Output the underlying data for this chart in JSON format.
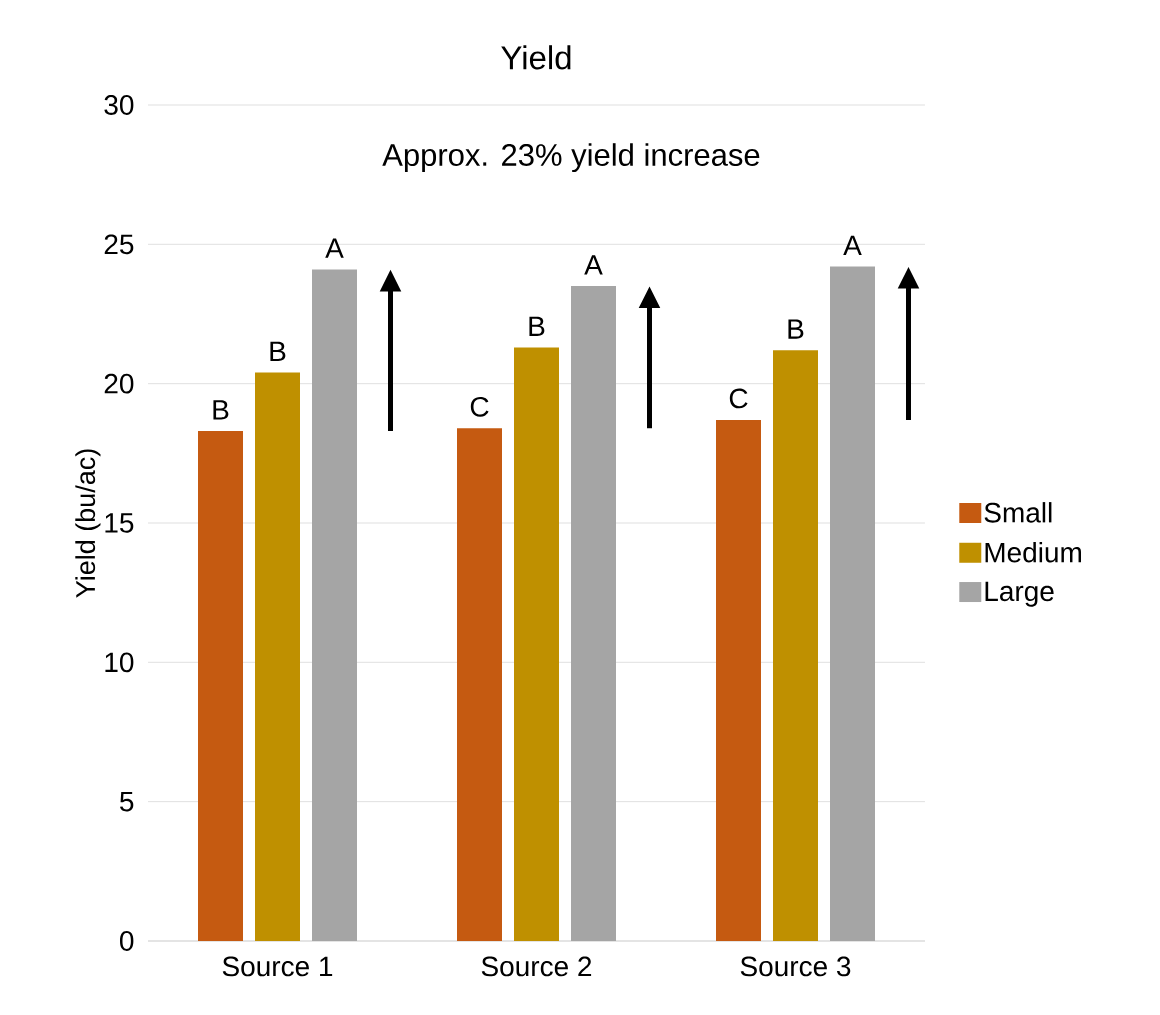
{
  "chart_data": {
    "type": "bar",
    "title": "Yield",
    "ylabel": "Yield (bu/ac)",
    "categories": [
      "Source 1",
      "Source 2",
      "Source 3"
    ],
    "series": [
      {
        "name": "Small",
        "color": "#c55a11",
        "values": [
          18.3,
          18.4,
          18.7
        ]
      },
      {
        "name": "Medium",
        "color": "#bf9000",
        "values": [
          20.4,
          21.3,
          21.2
        ]
      },
      {
        "name": "Large",
        "color": "#a5a5a5",
        "values": [
          24.1,
          23.5,
          24.2
        ]
      }
    ],
    "ylim": [
      0,
      30
    ],
    "yticks": [
      0,
      5,
      10,
      15,
      20,
      25,
      30
    ],
    "grid": "y",
    "legend": "right",
    "annotations": [
      "Approx. 23% yield increase",
      "B",
      "B",
      "A",
      "C",
      "B",
      "A",
      "C",
      "B",
      "A"
    ]
  }
}
